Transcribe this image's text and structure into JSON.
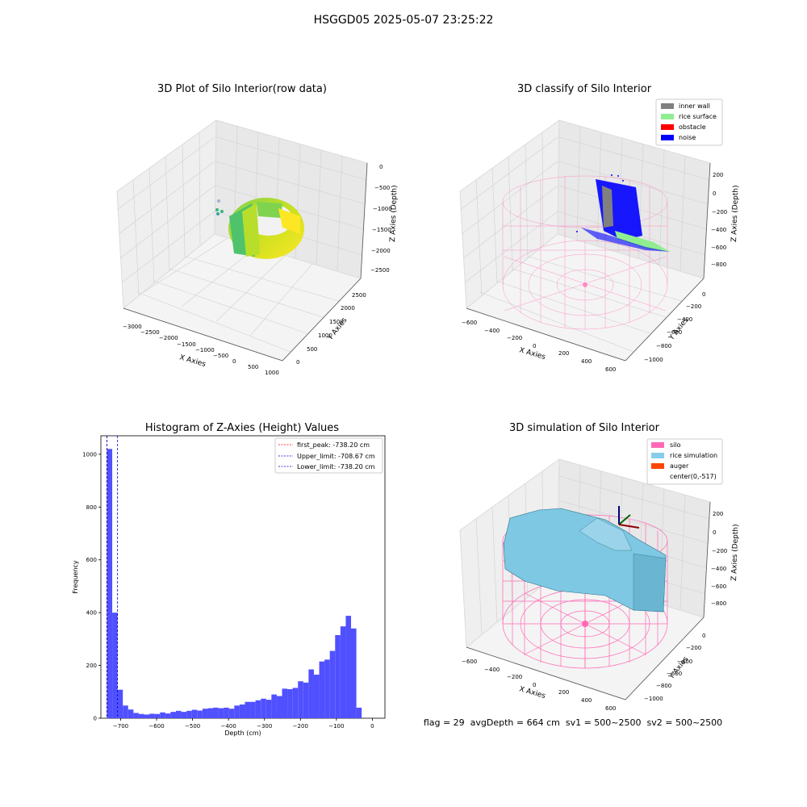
{
  "figure": {
    "title": "HSGGD05 2025-05-07 23:25:22",
    "footer_text": "flag = 29  avgDepth = 664 cm  sv1 = 500~2500  sv2 = 500~2500"
  },
  "colors": {
    "hist_bar": "#5050ff",
    "first_peak": "#ff0000",
    "limit_line": "#0000cc",
    "inner_wall": "#808080",
    "rice_surface": "#90ee90",
    "obstacle": "#ff0000",
    "noise": "#0000ff",
    "silo": "#ff69b4",
    "rice_simulation": "#87ceeb",
    "auger": "#ff4500"
  },
  "panels": {
    "raw": {
      "title": "3D Plot of Silo Interior(row data)",
      "xlabel": "X Axies",
      "ylabel": "Y Axies",
      "zlabel": "Z Axies (Depth)",
      "x_ticks": [
        "−3000",
        "−2500",
        "−2000",
        "−1500",
        "−1000",
        "−500",
        "0",
        "500",
        "1000"
      ],
      "y_ticks": [
        "0",
        "500",
        "1000",
        "1500",
        "2000",
        "2500"
      ],
      "z_ticks": [
        "0",
        "−500",
        "−1000",
        "−1500",
        "−2000",
        "−2500"
      ]
    },
    "classify": {
      "title": "3D classify of Silo Interior",
      "xlabel": "X Axies",
      "ylabel": "Y Axies",
      "zlabel": "Z Axies (Depth)",
      "x_ticks": [
        "−600",
        "−400",
        "−200",
        "0",
        "200",
        "400",
        "600"
      ],
      "y_ticks": [
        "0",
        "−200",
        "−400",
        "−600",
        "−800",
        "−1000"
      ],
      "z_ticks": [
        "200",
        "0",
        "−200",
        "−400",
        "−600",
        "−800"
      ],
      "legend": [
        "inner wall",
        "rice surface",
        "obstacle",
        "noise"
      ]
    },
    "simulation": {
      "title": "3D simulation of Silo Interior",
      "xlabel": "X Axies",
      "ylabel": "Y Axies",
      "zlabel": "Z Axies (Depth)",
      "x_ticks": [
        "−600",
        "−400",
        "−200",
        "0",
        "200",
        "400",
        "600"
      ],
      "y_ticks": [
        "0",
        "−200",
        "−400",
        "−600",
        "−800",
        "−1000"
      ],
      "z_ticks": [
        "200",
        "0",
        "−200",
        "−400",
        "−600",
        "−800"
      ],
      "legend": [
        "silo",
        "rice simulation",
        "auger",
        "center(0,-517)"
      ]
    }
  },
  "chart_data": [
    {
      "type": "bar",
      "title": "Histogram of Z-Axies (Height) Values",
      "xlabel": "Depth (cm)",
      "ylabel": "Frequency",
      "xlim": [
        -755,
        35
      ],
      "ylim": [
        0,
        1070
      ],
      "x_ticks": [
        -700,
        -600,
        -500,
        -400,
        -300,
        -200,
        -100,
        0
      ],
      "y_ticks": [
        0,
        200,
        400,
        600,
        800,
        1000
      ],
      "bin_start": -738.2,
      "bin_width": 14.76,
      "values": [
        1020,
        400,
        108,
        48,
        33,
        20,
        16,
        14,
        17,
        16,
        22,
        18,
        24,
        28,
        24,
        28,
        32,
        29,
        36,
        38,
        40,
        38,
        40,
        36,
        48,
        52,
        62,
        62,
        68,
        74,
        70,
        90,
        84,
        112,
        110,
        115,
        140,
        135,
        185,
        165,
        215,
        222,
        255,
        315,
        348,
        388,
        340,
        40
      ],
      "vlines": [
        {
          "label": "first_peak: -738.20 cm",
          "x": -738.2,
          "style": "first_peak"
        },
        {
          "label": "Upper_limit: -708.67 cm",
          "x": -708.67,
          "style": "limit"
        },
        {
          "label": "Lower_limit: -738.20 cm",
          "x": -738.2,
          "style": "limit"
        }
      ],
      "legend_position": "upper right"
    }
  ]
}
